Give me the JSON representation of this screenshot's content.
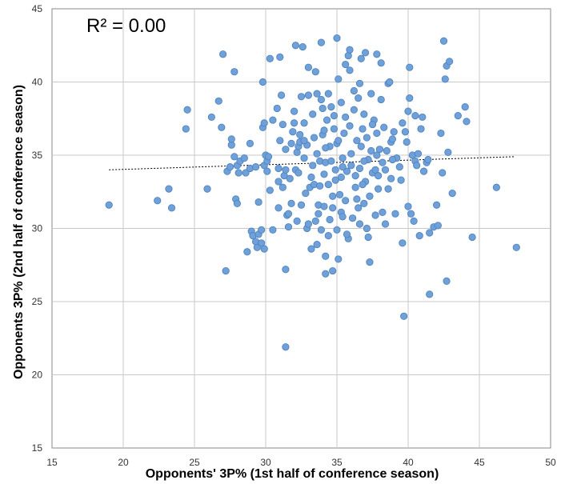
{
  "chart_data": {
    "type": "scatter",
    "title": "",
    "annotation": "R² = 0.00",
    "xlabel": "Opponents' 3P% (1st half of conference season)",
    "ylabel": "Opponents 3P% (2nd half of conference season)",
    "xlim": [
      15,
      50
    ],
    "ylim": [
      15,
      45
    ],
    "xticks": [
      "15",
      "20",
      "25",
      "30",
      "35",
      "40",
      "45",
      "50"
    ],
    "yticks": [
      "15",
      "20",
      "25",
      "30",
      "35",
      "40",
      "45"
    ],
    "grid": true,
    "legend": "none",
    "marker_color": "#6fa0d8",
    "marker_edge_color": "#4a7fbf",
    "trendline": {
      "x": [
        19.0,
        47.5
      ],
      "y": [
        34.0,
        34.9
      ],
      "style": "dashed",
      "color": "#000000"
    },
    "series": [
      {
        "points": [
          [
            19.0,
            31.6
          ],
          [
            22.4,
            31.9
          ],
          [
            23.2,
            32.7
          ],
          [
            23.4,
            31.4
          ],
          [
            24.4,
            36.8
          ],
          [
            24.5,
            38.1
          ],
          [
            25.9,
            32.7
          ],
          [
            26.2,
            37.6
          ],
          [
            26.7,
            38.7
          ],
          [
            26.9,
            36.9
          ],
          [
            27.0,
            41.9
          ],
          [
            27.2,
            27.1
          ],
          [
            27.3,
            33.9
          ],
          [
            27.5,
            34.2
          ],
          [
            27.6,
            35.7
          ],
          [
            27.6,
            36.1
          ],
          [
            27.8,
            40.7
          ],
          [
            27.8,
            34.9
          ],
          [
            27.9,
            32.0
          ],
          [
            28.0,
            31.7
          ],
          [
            28.0,
            34.3
          ],
          [
            28.1,
            33.8
          ],
          [
            28.2,
            34.6
          ],
          [
            28.5,
            34.8
          ],
          [
            28.6,
            33.8
          ],
          [
            28.7,
            28.4
          ],
          [
            28.9,
            34.1
          ],
          [
            28.9,
            35.8
          ],
          [
            29.0,
            29.8
          ],
          [
            29.1,
            29.5
          ],
          [
            29.3,
            29.1
          ],
          [
            29.3,
            34.2
          ],
          [
            29.4,
            28.7
          ],
          [
            29.5,
            29.6
          ],
          [
            29.5,
            31.8
          ],
          [
            29.7,
            29.0
          ],
          [
            29.7,
            29.9
          ],
          [
            29.9,
            34.3
          ],
          [
            29.8,
            36.9
          ],
          [
            29.8,
            40.0
          ],
          [
            29.9,
            37.2
          ],
          [
            29.9,
            28.6
          ],
          [
            30.0,
            35.0
          ],
          [
            30.1,
            33.9
          ],
          [
            30.1,
            34.6
          ],
          [
            30.2,
            34.9
          ],
          [
            30.3,
            32.6
          ],
          [
            30.3,
            41.6
          ],
          [
            30.5,
            29.9
          ],
          [
            30.5,
            37.4
          ],
          [
            30.8,
            38.2
          ],
          [
            30.9,
            31.4
          ],
          [
            30.9,
            34.1
          ],
          [
            31.0,
            36.0
          ],
          [
            31.0,
            41.7
          ],
          [
            31.1,
            39.1
          ],
          [
            31.2,
            37.1
          ],
          [
            31.2,
            32.8
          ],
          [
            31.3,
            33.6
          ],
          [
            31.4,
            35.4
          ],
          [
            31.4,
            34.0
          ],
          [
            31.5,
            30.9
          ],
          [
            31.6,
            30.1
          ],
          [
            31.6,
            31.0
          ],
          [
            31.7,
            33.4
          ],
          [
            31.8,
            35.8
          ],
          [
            31.9,
            36.6
          ],
          [
            32.0,
            37.2
          ],
          [
            32.0,
            38.0
          ],
          [
            32.1,
            42.5
          ],
          [
            32.1,
            34.0
          ],
          [
            32.2,
            35.2
          ],
          [
            32.3,
            35.6
          ],
          [
            32.3,
            33.8
          ],
          [
            32.4,
            35.9
          ],
          [
            32.4,
            36.4
          ],
          [
            32.5,
            31.6
          ],
          [
            32.6,
            42.4
          ],
          [
            32.7,
            34.8
          ],
          [
            32.7,
            37.2
          ],
          [
            32.9,
            35.7
          ],
          [
            32.9,
            30.0
          ],
          [
            33.0,
            39.1
          ],
          [
            33.0,
            41.0
          ],
          [
            33.1,
            32.8
          ],
          [
            33.2,
            28.6
          ],
          [
            33.3,
            34.3
          ],
          [
            33.3,
            37.8
          ],
          [
            33.4,
            36.2
          ],
          [
            33.4,
            33.0
          ],
          [
            33.5,
            30.5
          ],
          [
            33.6,
            35.1
          ],
          [
            33.6,
            39.2
          ],
          [
            33.7,
            31.6
          ],
          [
            33.8,
            34.6
          ],
          [
            33.8,
            32.9
          ],
          [
            33.9,
            42.7
          ],
          [
            33.9,
            29.9
          ],
          [
            34.0,
            36.4
          ],
          [
            34.0,
            38.2
          ],
          [
            34.1,
            33.7
          ],
          [
            34.1,
            31.5
          ],
          [
            34.2,
            34.5
          ],
          [
            34.2,
            28.1
          ],
          [
            34.2,
            26.9
          ],
          [
            34.3,
            37.4
          ],
          [
            34.4,
            33.0
          ],
          [
            34.4,
            39.2
          ],
          [
            34.5,
            35.6
          ],
          [
            34.5,
            30.6
          ],
          [
            34.6,
            34.6
          ],
          [
            34.6,
            38.3
          ],
          [
            34.7,
            31.4
          ],
          [
            34.7,
            27.1
          ],
          [
            34.8,
            36.8
          ],
          [
            34.9,
            33.3
          ],
          [
            35.0,
            43.0
          ],
          [
            35.0,
            35.8
          ],
          [
            35.0,
            29.9
          ],
          [
            35.1,
            27.9
          ],
          [
            35.1,
            40.2
          ],
          [
            35.2,
            32.3
          ],
          [
            35.3,
            38.6
          ],
          [
            35.4,
            34.8
          ],
          [
            35.5,
            36.5
          ],
          [
            35.6,
            31.9
          ],
          [
            35.6,
            41.2
          ],
          [
            35.7,
            33.9
          ],
          [
            35.8,
            41.8
          ],
          [
            35.8,
            29.3
          ],
          [
            35.9,
            37.0
          ],
          [
            35.9,
            42.2
          ],
          [
            36.0,
            34.3
          ],
          [
            36.0,
            35.1
          ],
          [
            36.1,
            30.7
          ],
          [
            36.2,
            39.4
          ],
          [
            36.3,
            32.8
          ],
          [
            36.3,
            33.6
          ],
          [
            36.4,
            36.0
          ],
          [
            36.5,
            38.9
          ],
          [
            36.6,
            34.1
          ],
          [
            36.6,
            30.3
          ],
          [
            36.7,
            41.6
          ],
          [
            36.7,
            35.6
          ],
          [
            36.8,
            36.8
          ],
          [
            36.9,
            31.7
          ],
          [
            36.9,
            37.8
          ],
          [
            37.0,
            42.0
          ],
          [
            37.0,
            33.2
          ],
          [
            37.1,
            36.2
          ],
          [
            37.2,
            29.4
          ],
          [
            37.2,
            34.7
          ],
          [
            37.3,
            27.7
          ],
          [
            37.3,
            32.2
          ],
          [
            37.4,
            39.2
          ],
          [
            37.4,
            35.3
          ],
          [
            37.5,
            33.8
          ],
          [
            37.6,
            37.4
          ],
          [
            37.7,
            30.9
          ],
          [
            37.7,
            34.0
          ],
          [
            37.8,
            41.9
          ],
          [
            37.8,
            36.5
          ],
          [
            37.9,
            32.7
          ],
          [
            37.9,
            33.6
          ],
          [
            38.0,
            35.4
          ],
          [
            38.1,
            38.8
          ],
          [
            38.1,
            41.3
          ],
          [
            38.2,
            31.1
          ],
          [
            38.3,
            36.9
          ],
          [
            38.4,
            34.0
          ],
          [
            38.4,
            30.3
          ],
          [
            38.5,
            35.3
          ],
          [
            38.6,
            39.9
          ],
          [
            38.6,
            32.7
          ],
          [
            38.7,
            40.0
          ],
          [
            38.8,
            35.9
          ],
          [
            38.8,
            33.4
          ],
          [
            38.9,
            36.1
          ],
          [
            39.0,
            36.6
          ],
          [
            39.1,
            31.0
          ],
          [
            39.2,
            34.8
          ],
          [
            39.4,
            34.2
          ],
          [
            39.5,
            33.3
          ],
          [
            39.6,
            37.2
          ],
          [
            39.6,
            29.0
          ],
          [
            39.7,
            24.0
          ],
          [
            39.8,
            36.6
          ],
          [
            39.9,
            35.9
          ],
          [
            40.0,
            31.5
          ],
          [
            40.0,
            38.0
          ],
          [
            40.1,
            38.9
          ],
          [
            40.1,
            41.0
          ],
          [
            40.2,
            31.0
          ],
          [
            40.3,
            35.0
          ],
          [
            40.4,
            30.5
          ],
          [
            40.5,
            34.6
          ],
          [
            40.5,
            37.7
          ],
          [
            40.6,
            34.3
          ],
          [
            40.7,
            35.1
          ],
          [
            40.8,
            29.5
          ],
          [
            40.9,
            36.8
          ],
          [
            41.0,
            37.6
          ],
          [
            41.1,
            33.9
          ],
          [
            41.3,
            34.5
          ],
          [
            41.4,
            34.7
          ],
          [
            41.5,
            29.7
          ],
          [
            41.5,
            25.5
          ],
          [
            41.8,
            30.1
          ],
          [
            42.0,
            31.6
          ],
          [
            42.1,
            30.2
          ],
          [
            42.3,
            36.5
          ],
          [
            42.4,
            33.8
          ],
          [
            42.5,
            42.8
          ],
          [
            42.6,
            40.2
          ],
          [
            42.7,
            26.4
          ],
          [
            42.7,
            41.1
          ],
          [
            42.8,
            35.2
          ],
          [
            42.9,
            41.4
          ],
          [
            43.1,
            32.4
          ],
          [
            43.5,
            37.7
          ],
          [
            44.0,
            38.3
          ],
          [
            44.1,
            37.3
          ],
          [
            44.5,
            29.4
          ],
          [
            46.2,
            32.8
          ],
          [
            47.6,
            28.7
          ],
          [
            31.4,
            21.9
          ],
          [
            31.4,
            27.2
          ],
          [
            30.9,
            33.2
          ],
          [
            35.3,
            31.1
          ],
          [
            36.4,
            32.0
          ],
          [
            37.5,
            37.1
          ],
          [
            33.0,
            30.3
          ],
          [
            35.4,
            30.8
          ],
          [
            34.1,
            36.7
          ],
          [
            32.8,
            32.4
          ],
          [
            36.2,
            38.1
          ],
          [
            33.5,
            40.7
          ],
          [
            34.9,
            34.0
          ],
          [
            35.9,
            40.8
          ],
          [
            37.8,
            35.0
          ],
          [
            33.2,
            33.5
          ],
          [
            31.8,
            31.7
          ],
          [
            36.8,
            33.0
          ],
          [
            38.2,
            34.5
          ],
          [
            32.5,
            39.0
          ],
          [
            34.8,
            37.7
          ],
          [
            36.9,
            34.6
          ],
          [
            35.1,
            36.0
          ],
          [
            33.7,
            31.0
          ],
          [
            35.6,
            37.6
          ],
          [
            37.1,
            30.0
          ],
          [
            34.4,
            29.5
          ],
          [
            32.2,
            30.5
          ],
          [
            35.7,
            29.6
          ],
          [
            36.5,
            31.4
          ],
          [
            33.6,
            28.9
          ],
          [
            34.7,
            32.2
          ],
          [
            38.9,
            34.7
          ],
          [
            32.7,
            36.0
          ],
          [
            35.3,
            33.5
          ],
          [
            34.2,
            35.5
          ],
          [
            36.6,
            39.9
          ],
          [
            33.9,
            38.8
          ],
          [
            35.4,
            34.2
          ]
        ]
      }
    ]
  }
}
